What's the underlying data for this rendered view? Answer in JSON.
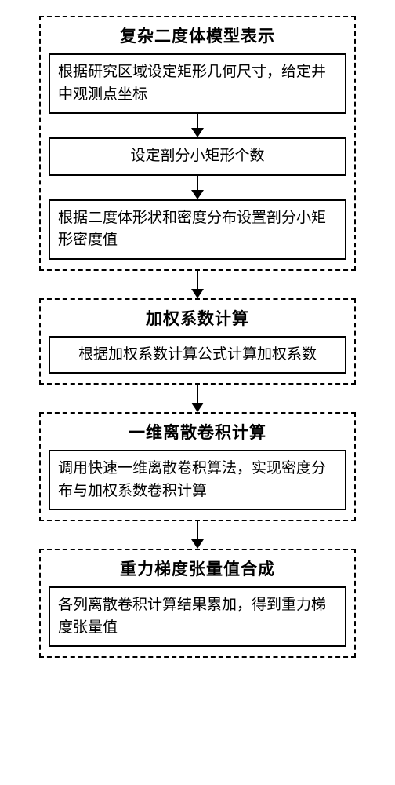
{
  "flowchart": {
    "type": "flowchart",
    "background_color": "#ffffff",
    "border_color": "#000000",
    "text_color": "#000000",
    "title_fontsize": 21,
    "body_fontsize": 19,
    "dash_border_width": 2,
    "solid_border_width": 2,
    "stages": [
      {
        "title": "复杂二度体模型表示",
        "boxes": [
          {
            "text": "根据研究区域设定矩形几何尺寸，给定井中观测点坐标",
            "align": "left"
          },
          {
            "text": "设定剖分小矩形个数",
            "align": "center"
          },
          {
            "text": "根据二度体形状和密度分布设置剖分小矩形密度值",
            "align": "left"
          }
        ]
      },
      {
        "title": "加权系数计算",
        "boxes": [
          {
            "text": "根据加权系数计算公式计算加权系数",
            "align": "center"
          }
        ]
      },
      {
        "title": "一维离散卷积计算",
        "boxes": [
          {
            "text": "调用快速一维离散卷积算法，实现密度分布与加权系数卷积计算",
            "align": "left"
          }
        ]
      },
      {
        "title": "重力梯度张量值合成",
        "boxes": [
          {
            "text": "各列离散卷积计算结果累加，得到重力梯度张量值",
            "align": "left"
          }
        ]
      }
    ]
  }
}
